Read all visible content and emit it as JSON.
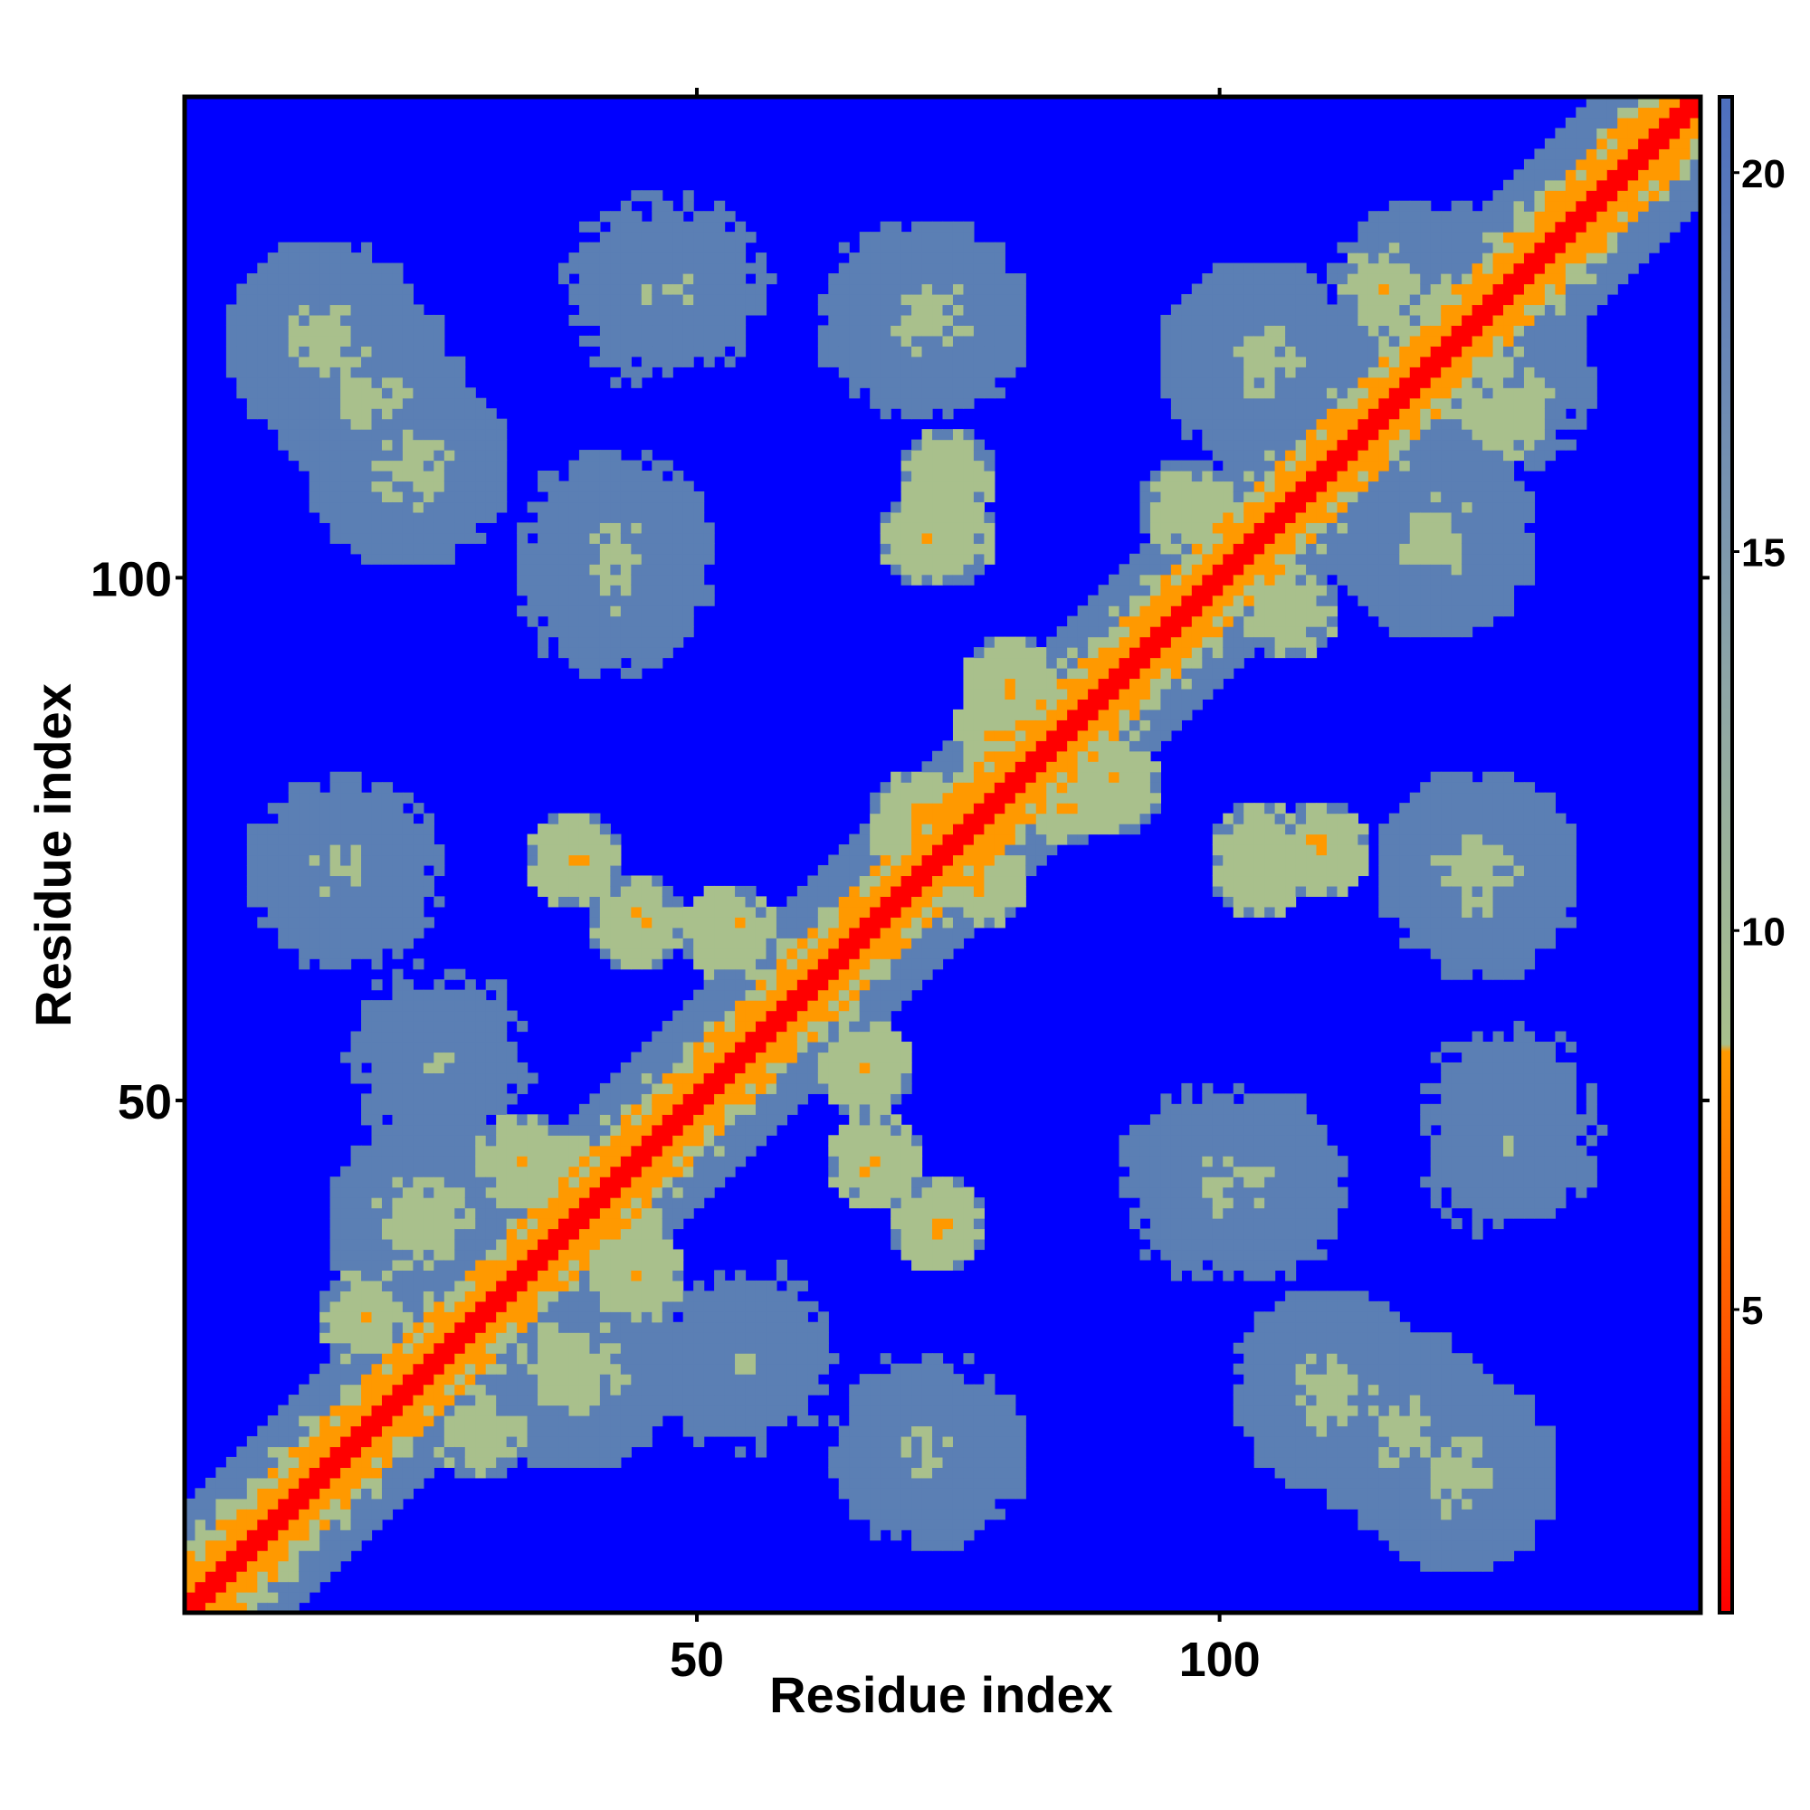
{
  "chart_data": {
    "type": "heatmap",
    "title": "",
    "xlabel": "Residue index",
    "ylabel": "Residue index",
    "n_residues": 146,
    "xlim": [
      1,
      146
    ],
    "ylim": [
      1,
      146
    ],
    "x_ticks": [
      50,
      100
    ],
    "y_ticks": [
      50,
      100
    ],
    "x_tick_labels": [
      "50",
      "100"
    ],
    "y_tick_labels": [
      "50",
      "100"
    ],
    "colorbar": {
      "range": [
        1,
        21
      ],
      "ticks": [
        5,
        10,
        15,
        20
      ],
      "tick_labels": [
        "5",
        "10",
        "15",
        "20"
      ],
      "colors": {
        "very_close": "#ff0000",
        "close": "#ff9900",
        "mid": "#a9c08c",
        "far": "#5b7fb4",
        "background": "#0000ff"
      }
    },
    "symmetric": true,
    "diagonal_value": 1,
    "structure": {
      "helices": [
        [
          3,
          28
        ],
        [
          44,
          70
        ],
        [
          76,
          98
        ],
        [
          108,
          142
        ]
      ],
      "off_diagonal_contacts": [
        {
          "i": 33,
          "j": 44,
          "value": 6
        },
        {
          "i": 37,
          "j": 42,
          "value": 6
        },
        {
          "i": 24,
          "j": 38,
          "value": 8
        },
        {
          "i": 18,
          "j": 29,
          "value": 7
        },
        {
          "i": 44,
          "j": 67,
          "value": 6
        },
        {
          "i": 53,
          "j": 66,
          "value": 6
        },
        {
          "i": 73,
          "j": 38,
          "value": 6
        },
        {
          "i": 77,
          "j": 71,
          "value": 6
        },
        {
          "i": 80,
          "j": 90,
          "value": 6
        },
        {
          "i": 85,
          "j": 79,
          "value": 6
        },
        {
          "i": 104,
          "j": 72,
          "value": 6
        },
        {
          "i": 110,
          "j": 74,
          "value": 6
        },
        {
          "i": 97,
          "j": 107,
          "value": 7
        },
        {
          "i": 116,
          "j": 128,
          "value": 7
        },
        {
          "i": 74,
          "j": 104,
          "value": 7
        },
        {
          "i": 22,
          "j": 111,
          "value": 9
        },
        {
          "i": 14,
          "j": 123,
          "value": 9
        },
        {
          "i": 42,
          "j": 100,
          "value": 10
        },
        {
          "i": 46,
          "j": 128,
          "value": 11
        },
        {
          "i": 72,
          "j": 125,
          "value": 9
        },
        {
          "i": 120,
          "j": 127,
          "value": 10
        },
        {
          "i": 125,
          "j": 71,
          "value": 10
        },
        {
          "i": 128,
          "j": 48,
          "value": 11
        },
        {
          "i": 103,
          "j": 42,
          "value": 10
        },
        {
          "i": 118,
          "j": 18,
          "value": 9
        },
        {
          "i": 104,
          "j": 121,
          "value": 9
        },
        {
          "i": 72,
          "j": 16,
          "value": 10
        },
        {
          "i": 54,
          "j": 25,
          "value": 11
        }
      ]
    }
  }
}
